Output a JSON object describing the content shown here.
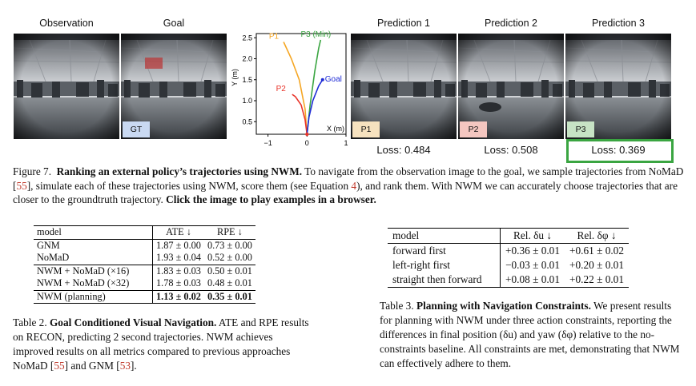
{
  "headers": {
    "observation": "Observation",
    "goal": "Goal",
    "pred1": "Prediction 1",
    "pred2": "Prediction 2",
    "pred3": "Prediction 3"
  },
  "tags": {
    "gt": "GT",
    "p1": "P1",
    "p2": "P2",
    "p3": "P3"
  },
  "colors": {
    "p1": "#f5a623",
    "p2": "#e8342a",
    "p3": "#3aa541",
    "goal": "#1f2cd6",
    "highlight": "#3aa541",
    "gt_tag": "#c9d9f2",
    "p1_tag": "#f6e2bf",
    "p2_tag": "#f4c6c0",
    "p3_tag": "#c7e3c5"
  },
  "losses": {
    "p1": "Loss: 0.484",
    "p2": "Loss: 0.508",
    "p3": "Loss: 0.369"
  },
  "chart_data": {
    "type": "line",
    "xlabel": "X (m)",
    "ylabel": "Y (m)",
    "xticks": [
      "−1",
      "0",
      "1"
    ],
    "yticks": [
      "0.5",
      "1.0",
      "1.5",
      "2.0",
      "2.5"
    ],
    "xlim": [
      -1.3,
      1.0
    ],
    "ylim": [
      0.2,
      2.6
    ],
    "goal_label": "Goal",
    "goal": [
      0.4,
      1.5
    ],
    "series": [
      {
        "name": "P1",
        "color": "#f5a623",
        "x": [
          0.0,
          -0.05,
          -0.2,
          -0.4,
          -0.6
        ],
        "y": [
          0.2,
          0.8,
          1.5,
          2.0,
          2.4
        ]
      },
      {
        "name": "P2",
        "color": "#e8342a",
        "x": [
          0.0,
          -0.05,
          -0.15,
          -0.3,
          -0.38
        ],
        "y": [
          0.2,
          0.55,
          0.9,
          1.1,
          1.15
        ]
      },
      {
        "name": "P3 (Min)",
        "color": "#3aa541",
        "x": [
          0.0,
          0.08,
          0.2,
          0.3,
          0.35
        ],
        "y": [
          0.2,
          0.9,
          1.7,
          2.25,
          2.45
        ]
      },
      {
        "name": "",
        "color": "#1f2cd6",
        "x": [
          0.0,
          0.05,
          0.15,
          0.3,
          0.4
        ],
        "y": [
          0.2,
          0.6,
          1.0,
          1.35,
          1.5
        ]
      }
    ]
  },
  "figure_caption": {
    "prefix": "Figure 7.",
    "bold": "Ranking an external policy’s trajectories using NWM.",
    "text1": " To navigate from the observation image to the goal, we sample trajectories from NoMaD [",
    "ref1": "55",
    "text2": "], simulate each of these trajectories using NWM, score them (see Equation ",
    "ref2": "4",
    "text3": "), and rank them. With NWM we can accurately choose trajectories that are closer to the groundtruth trajectory. ",
    "bold2": "Click the image to play examples in a browser."
  },
  "table2": {
    "headers": [
      "model",
      "ATE ↓",
      "RPE ↓"
    ],
    "rows": [
      [
        "GNM",
        "1.87 ± 0.00",
        "0.73 ± 0.00"
      ],
      [
        "NoMaD",
        "1.93 ± 0.04",
        "0.52 ± 0.00"
      ],
      [
        "NWM + NoMaD (×16)",
        "1.83 ± 0.03",
        "0.50 ± 0.01"
      ],
      [
        "NWM + NoMaD (×32)",
        "1.78 ± 0.03",
        "0.48 ± 0.01"
      ],
      [
        "NWM (planning)",
        "1.13 ± 0.02",
        "0.35 ± 0.01"
      ]
    ],
    "caption_prefix": "Table 2.",
    "caption_bold": "Goal Conditioned Visual Navigation.",
    "caption_text1": " ATE and RPE results on RECON, predicting 2 second trajectories. NWM achieves improved results on all metrics compared to previous approaches NoMaD [",
    "caption_ref1": "55",
    "caption_text2": "] and GNM [",
    "caption_ref2": "53",
    "caption_text3": "]."
  },
  "table3": {
    "headers": [
      "model",
      "Rel. δu ↓",
      "Rel. δφ ↓"
    ],
    "rows": [
      [
        "forward first",
        "+0.36 ± 0.01",
        "+0.61 ± 0.02"
      ],
      [
        "left-right first",
        "−0.03 ± 0.01",
        "+0.20 ± 0.01"
      ],
      [
        "straight then forward",
        "+0.08 ± 0.01",
        "+0.22 ± 0.01"
      ]
    ],
    "caption_prefix": "Table 3.",
    "caption_bold": "Planning with Navigation Constraints.",
    "caption_text": " We present results for planning with NWM under three action constraints, reporting the differences in final position (δu) and yaw (δφ) relative to the no-constraints baseline. All constraints are met, demonstrating that NWM can effectively adhere to them."
  }
}
